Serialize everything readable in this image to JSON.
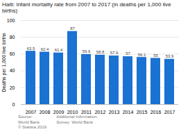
{
  "chart_data": {
    "type": "bar",
    "title": "Haiti: Infant mortality rate from 2007 to 2017 (in deaths per 1,000 live births)",
    "categories": [
      "2007",
      "2008",
      "2009",
      "2010",
      "2011",
      "2012",
      "2013",
      "2014",
      "2015",
      "2016",
      "2017"
    ],
    "values": [
      63.5,
      62.4,
      61.4,
      87,
      59.6,
      58.8,
      57.9,
      57,
      56.1,
      55,
      53.9
    ],
    "color": "#1a72d2",
    "ylabel": "Deaths per 1,000 live births",
    "ylim": [
      0,
      100
    ],
    "yticks": [
      0,
      20,
      40,
      60,
      80,
      100
    ],
    "grid": true,
    "data_labels": true,
    "annotations": [
      "Source:\nWorld Bank\n© Statista 2019",
      "Additional Information:\nSurvey: World Bank"
    ]
  }
}
